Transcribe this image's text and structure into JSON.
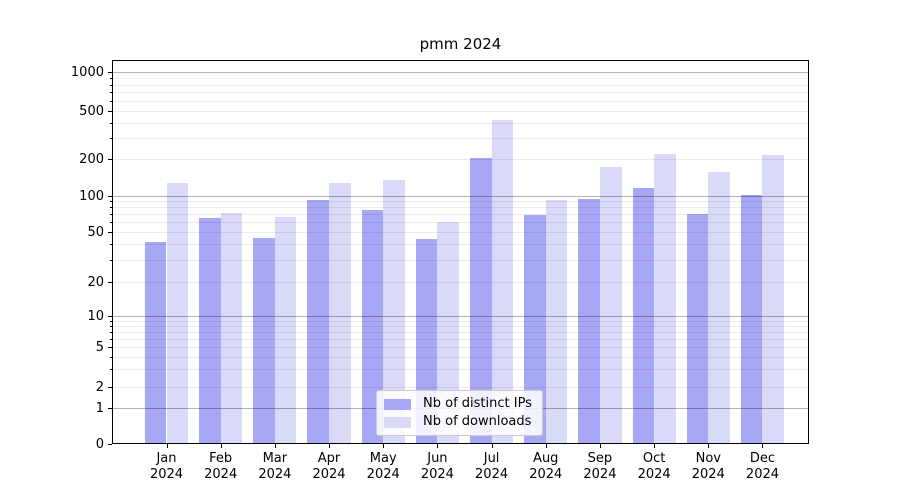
{
  "title": "pmm 2024",
  "chart_data": {
    "type": "bar",
    "title": "pmm 2024",
    "categories": [
      "Jan 2024",
      "Feb 2024",
      "Mar 2024",
      "Apr 2024",
      "May 2024",
      "Jun 2024",
      "Jul 2024",
      "Aug 2024",
      "Sep 2024",
      "Oct 2024",
      "Nov 2024",
      "Dec 2024"
    ],
    "series": [
      {
        "name": "Nb of distinct IPs",
        "color": "#a7a7f5",
        "values": [
          42,
          65,
          45,
          92,
          76,
          44,
          202,
          69,
          93,
          116,
          70,
          101
        ]
      },
      {
        "name": "Nb of downloads",
        "color": "#d9d9f8",
        "values": [
          126,
          72,
          67,
          128,
          133,
          61,
          425,
          92,
          171,
          222,
          156,
          217
        ]
      }
    ],
    "xlabel": "",
    "ylabel": "",
    "yscale": "log-like with zero baseline",
    "yticks": [
      0,
      1,
      2,
      5,
      10,
      20,
      50,
      100,
      200,
      500,
      1000
    ],
    "ylim": [
      0,
      1200
    ],
    "grid": true,
    "grid_over_bars": true,
    "legend_position": "lower center",
    "colors": {
      "background": "#ffffff",
      "spine": "#000000",
      "major_grid": "#b3b3b3",
      "minor_grid": "#ececec",
      "text": "#000000"
    }
  }
}
